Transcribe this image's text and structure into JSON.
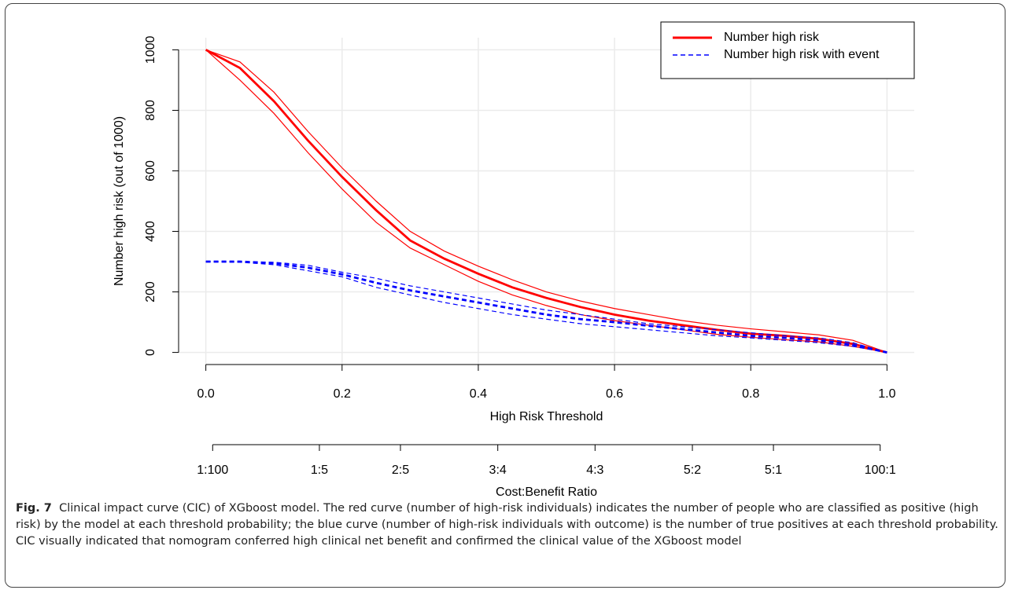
{
  "chart_data": {
    "type": "line",
    "x": [
      0,
      0.05,
      0.1,
      0.15,
      0.2,
      0.25,
      0.3,
      0.35,
      0.4,
      0.45,
      0.5,
      0.55,
      0.6,
      0.65,
      0.7,
      0.75,
      0.8,
      0.85,
      0.9,
      0.95,
      1
    ],
    "series": [
      {
        "name": "Number high risk",
        "color": "#ff0000",
        "dash": false,
        "values": [
          1000,
          940,
          830,
          700,
          580,
          470,
          370,
          310,
          260,
          215,
          180,
          150,
          125,
          105,
          90,
          75,
          62,
          55,
          45,
          28,
          0
        ],
        "lower": [
          1000,
          900,
          790,
          660,
          540,
          430,
          345,
          290,
          235,
          190,
          155,
          125,
          105,
          90,
          75,
          60,
          50,
          42,
          35,
          20,
          0
        ],
        "upper": [
          1000,
          960,
          860,
          730,
          610,
          500,
          400,
          335,
          285,
          240,
          200,
          170,
          145,
          125,
          105,
          90,
          78,
          68,
          58,
          40,
          0
        ]
      },
      {
        "name": "Number high risk with event",
        "color": "#0000ff",
        "dash": true,
        "values": [
          300,
          300,
          295,
          280,
          258,
          230,
          205,
          185,
          165,
          145,
          125,
          110,
          100,
          88,
          77,
          66,
          55,
          48,
          40,
          25,
          0
        ],
        "lower": [
          300,
          298,
          290,
          270,
          250,
          215,
          190,
          165,
          145,
          125,
          110,
          95,
          85,
          75,
          65,
          55,
          48,
          40,
          32,
          20,
          0
        ],
        "upper": [
          300,
          300,
          298,
          288,
          265,
          245,
          220,
          200,
          180,
          160,
          140,
          125,
          110,
          95,
          85,
          75,
          65,
          55,
          48,
          32,
          0
        ]
      }
    ],
    "xlabel": "High Risk Threshold",
    "ylabel": "Number high risk (out of 1000)",
    "xlim": [
      -0.04,
      1.04
    ],
    "ylim": [
      -40,
      1040
    ],
    "xticks": [
      {
        "value": 0,
        "label": "0.0"
      },
      0.2,
      0.4,
      0.6,
      0.8,
      {
        "value": 1,
        "label": "1.0"
      }
    ],
    "yticks": [
      0,
      200,
      400,
      600,
      800,
      1000
    ],
    "x2label": "Cost:Benefit Ratio",
    "x2ticks": [
      {
        "value": 0.01,
        "label": "1:100"
      },
      {
        "value": 0.1667,
        "label": "1:5"
      },
      {
        "value": 0.2857,
        "label": "2:5"
      },
      {
        "value": 0.4286,
        "label": "3:4"
      },
      {
        "value": 0.5714,
        "label": "4:3"
      },
      {
        "value": 0.7143,
        "label": "5:2"
      },
      {
        "value": 0.8333,
        "label": "5:1"
      },
      {
        "value": 0.99,
        "label": "100:1"
      }
    ],
    "grid": true,
    "legend": "top-right"
  },
  "caption": {
    "label": "Fig. 7",
    "text": "Clinical impact curve (CIC) of XGboost model. The red curve (number of high-risk individuals) indicates the number of people who are classified as positive (high risk) by the model at each threshold probability; the blue curve (number of high-risk individuals with outcome) is the number of true positives at each threshold probability. CIC visually indicated that nomogram conferred high clinical net benefit and confirmed the clinical value of the XGboost model"
  }
}
